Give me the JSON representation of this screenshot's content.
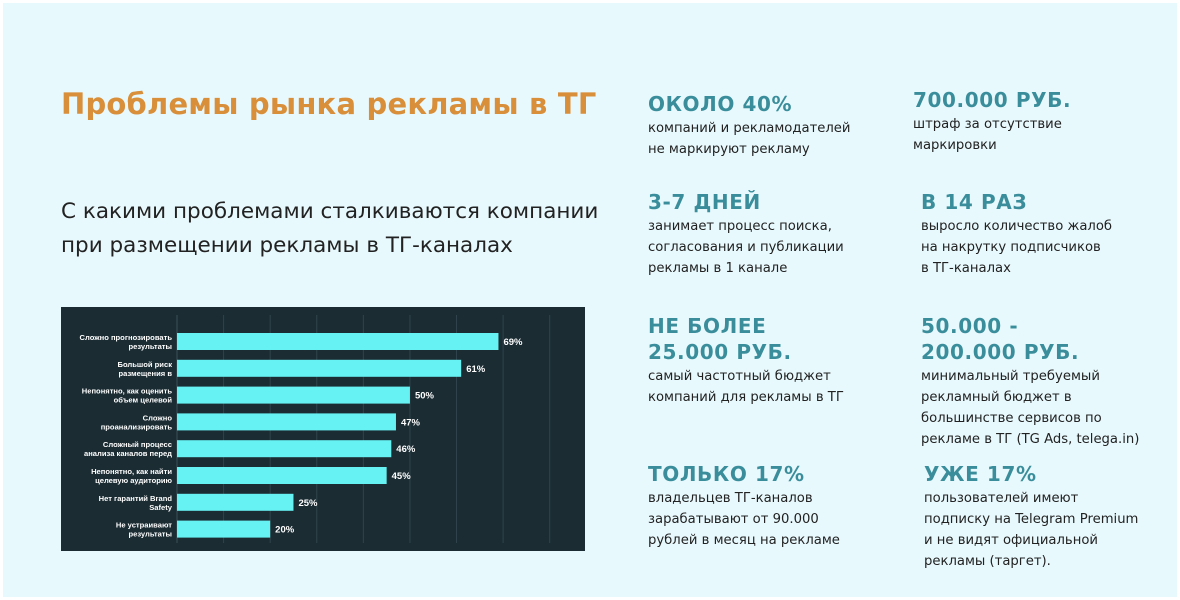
{
  "title": "Проблемы рынка рекламы в ТГ",
  "subtitle": "С какими проблемами сталкиваются компании при размещении рекламы в ТГ-каналах",
  "chart_data": {
    "type": "bar",
    "orientation": "horizontal",
    "categories": [
      [
        "Сложно прогнозировать",
        "результаты"
      ],
      [
        "Большой риск",
        "размещения в"
      ],
      [
        "Непонятно, как оценить",
        "объем целевой"
      ],
      [
        "Сложно",
        "проанализировать"
      ],
      [
        "Сложный процесс",
        "анализа каналов перед"
      ],
      [
        "Непонятно, как найти",
        "целевую аудиторию"
      ],
      [
        "Нет гарантий Brand",
        "Safety"
      ],
      [
        "Не устраивают",
        "результаты"
      ]
    ],
    "values": [
      69,
      61,
      50,
      47,
      46,
      45,
      25,
      20
    ],
    "value_labels": [
      "69%",
      "61%",
      "50%",
      "47%",
      "46%",
      "45%",
      "25%",
      "20%"
    ],
    "xlim": [
      0,
      85
    ],
    "bar_color": "#66f2f2",
    "background": "#1b2c33",
    "grid": true
  },
  "stats": [
    {
      "head": "ОКОЛО 40%",
      "body": "компаний и рекламодателей\nне маркируют рекламу"
    },
    {
      "head": "700.000 РУБ.",
      "body": "штраф за отсутствие\n маркировки"
    },
    {
      "head": "3-7 ДНЕЙ",
      "body": "занимает процесс поиска,\nсогласования и публикации\nрекламы в 1 канале"
    },
    {
      "head": "В 14 РАЗ",
      "body": "выросло количество жалоб\nна накрутку подписчиков\nв ТГ-каналах"
    },
    {
      "head": "НЕ БОЛЕЕ\n25.000 РУБ.",
      "body": "самый частотный бюджет\nкомпаний для рекламы в ТГ"
    },
    {
      "head": "50.000 -\n200.000 РУБ.",
      "body": "минимальный требуемый\nрекламный бюджет в\nбольшинстве сервисов по\nрекламе в ТГ (TG Ads, telega.in)"
    },
    {
      "head": "ТОЛЬКО 17%",
      "body": "владельцев ТГ-каналов\nзарабатывают от 90.000\nрублей в месяц на рекламе"
    },
    {
      "head": "УЖЕ 17%",
      "body": "пользователей имеют\nподписку на Telegram Premium\nи не видят официальной\nрекламы (таргет)."
    }
  ],
  "colors": {
    "title": "#d98e3a",
    "stat_head": "#3a8e9b",
    "text": "#222222",
    "background": "#e8f9fd"
  }
}
